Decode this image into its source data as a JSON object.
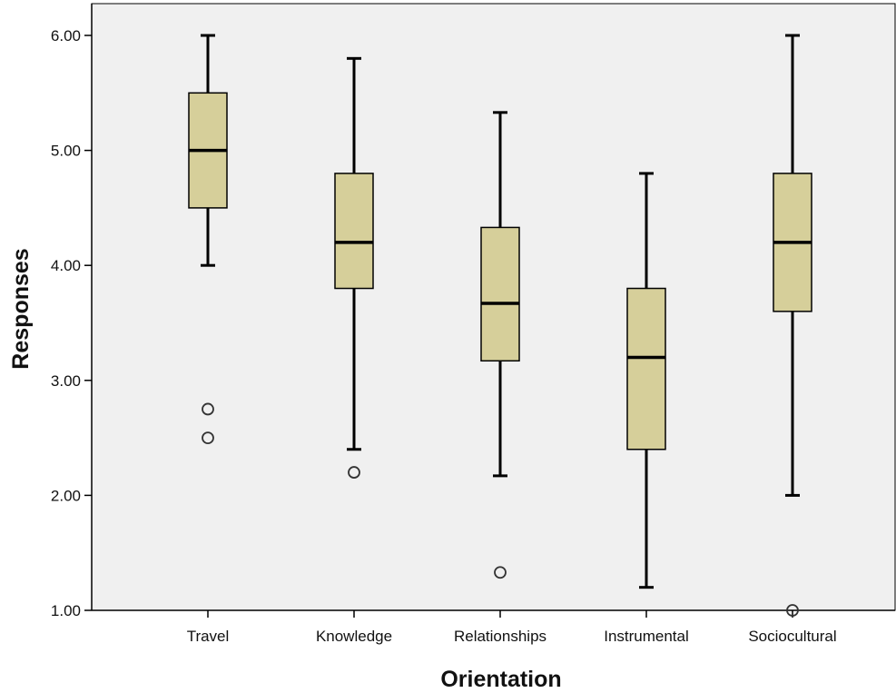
{
  "chart_data": {
    "type": "boxplot",
    "xlabel": "Orientation",
    "ylabel": "Responses",
    "ylim": [
      1.0,
      6.0
    ],
    "y_ticks": [
      "1.00",
      "2.00",
      "3.00",
      "4.00",
      "5.00",
      "6.00"
    ],
    "y_tick_values": [
      1,
      2,
      3,
      4,
      5,
      6
    ],
    "categories": [
      "Travel",
      "Knowledge",
      "Relationships",
      "Instrumental",
      "Sociocultural"
    ],
    "boxes": [
      {
        "category": "Travel",
        "whisker_low": 4.0,
        "q1": 4.5,
        "median": 5.0,
        "q3": 5.5,
        "whisker_high": 6.0,
        "outliers": [
          2.75,
          2.5
        ]
      },
      {
        "category": "Knowledge",
        "whisker_low": 2.4,
        "q1": 3.8,
        "median": 4.2,
        "q3": 4.8,
        "whisker_high": 5.8,
        "outliers": [
          2.2
        ]
      },
      {
        "category": "Relationships",
        "whisker_low": 2.17,
        "q1": 3.17,
        "median": 3.67,
        "q3": 4.33,
        "whisker_high": 5.33,
        "outliers": [
          1.33
        ]
      },
      {
        "category": "Instrumental",
        "whisker_low": 1.2,
        "q1": 2.4,
        "median": 3.2,
        "q3": 3.8,
        "whisker_high": 4.8,
        "outliers": []
      },
      {
        "category": "Sociocultural",
        "whisker_low": 2.0,
        "q1": 3.6,
        "median": 4.2,
        "q3": 4.8,
        "whisker_high": 6.0,
        "outliers": [
          1.0
        ]
      }
    ],
    "grid": false,
    "colors": {
      "plot_background": "#f0f0f0",
      "box_fill": "#d6cf9a",
      "line": "#000000"
    }
  }
}
